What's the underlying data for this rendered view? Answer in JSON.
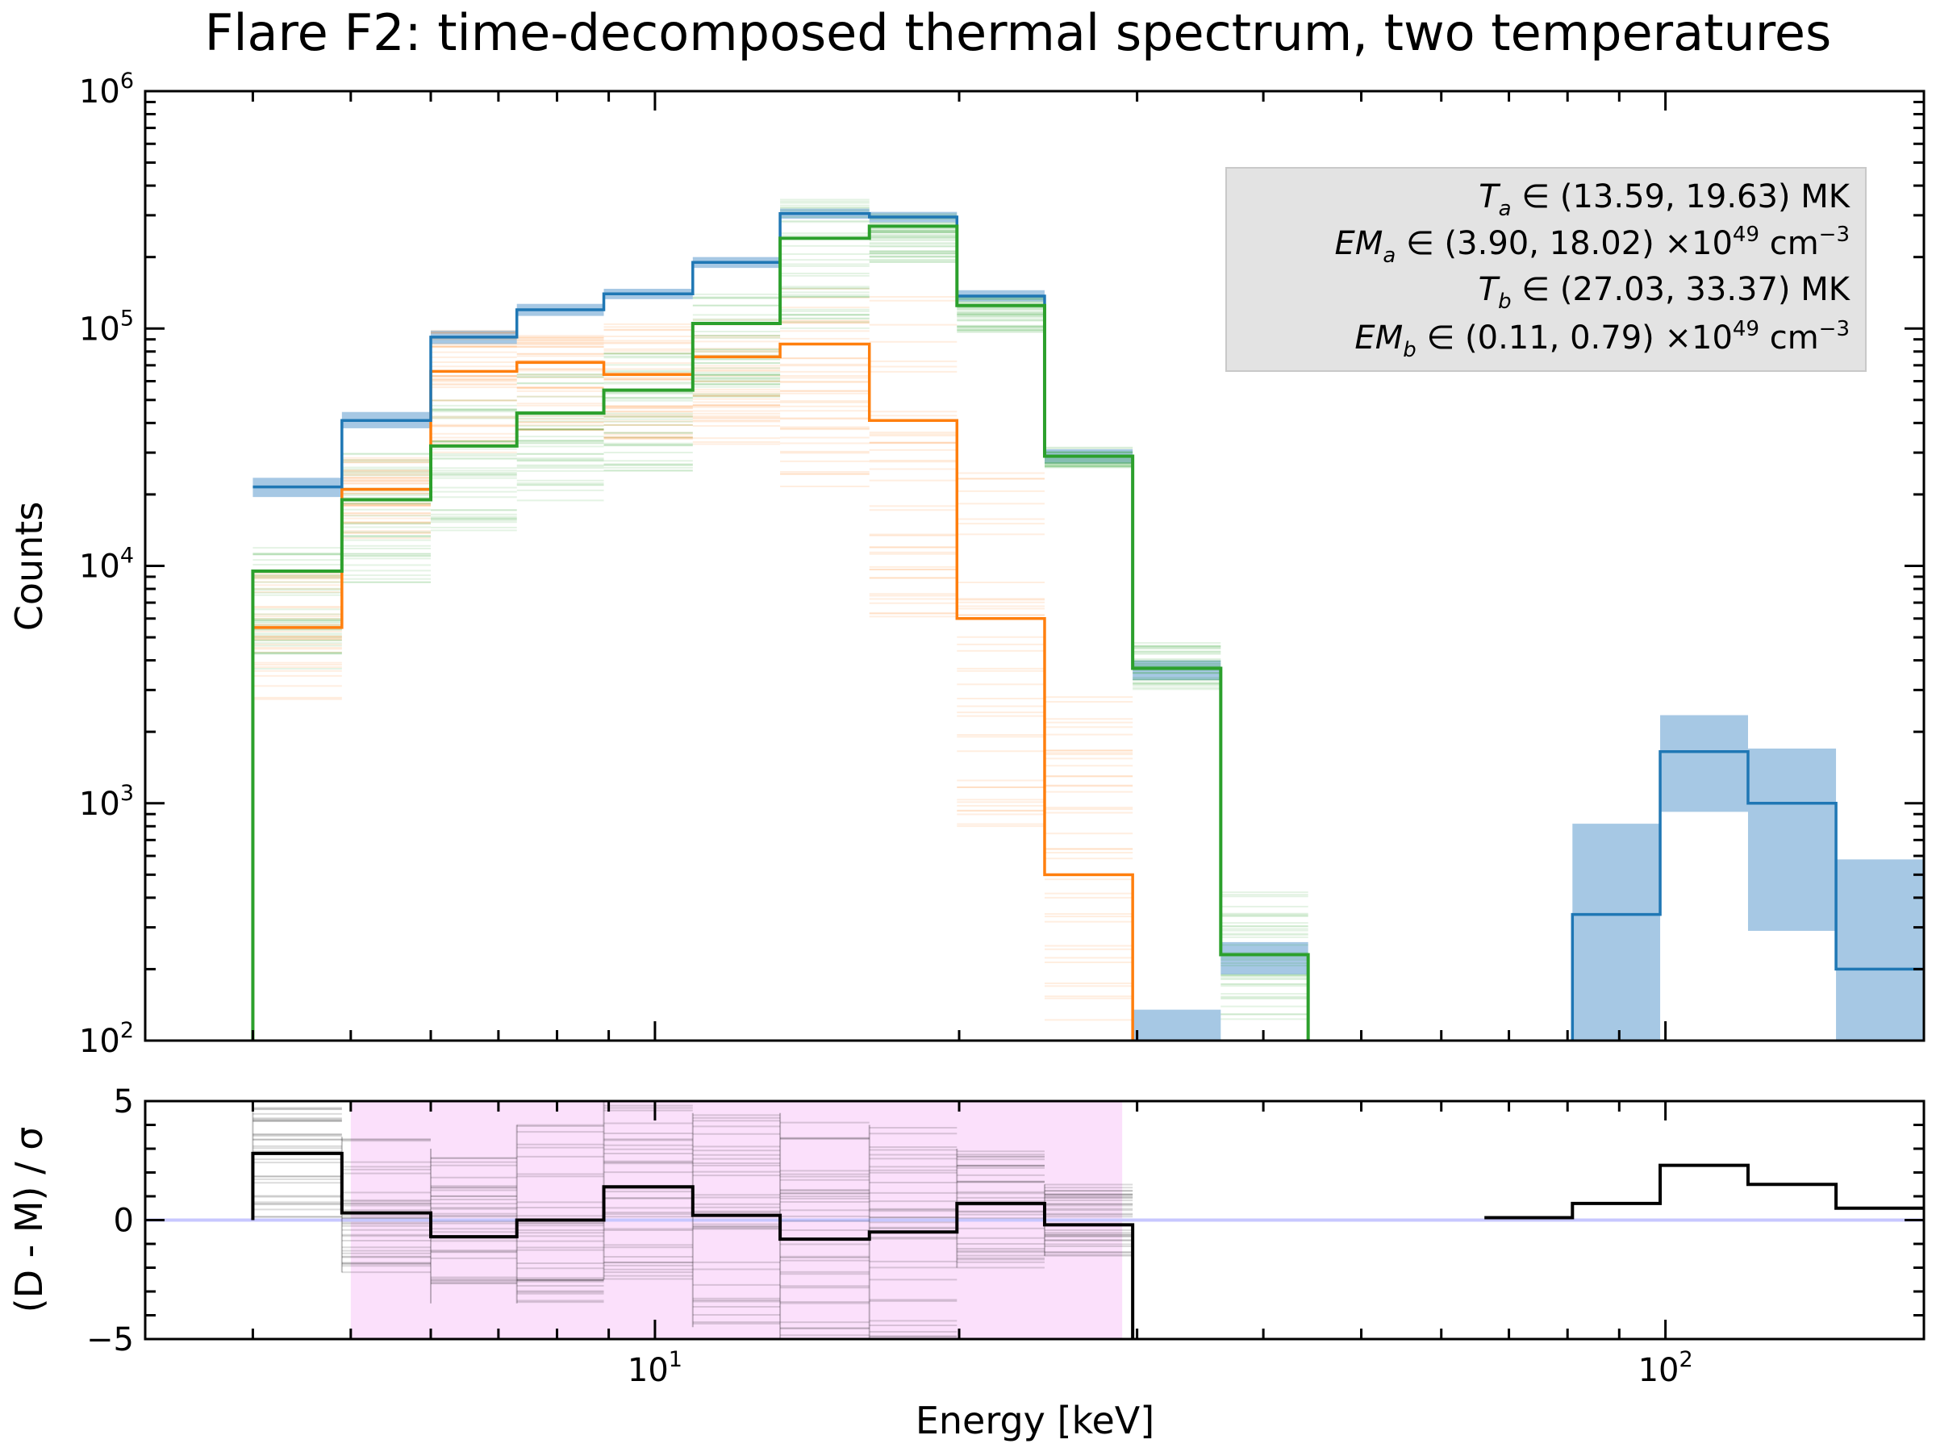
{
  "chart_data": {
    "title": "Flare F2: time-decomposed thermal spectrum, two temperatures",
    "xlabel": "Energy [keV]",
    "type": "line",
    "colors": {
      "total": "#1f77b4",
      "total_band": "#a6c8e4",
      "component_a": "#2ca02c",
      "component_b": "#ff7f0e",
      "residual": "#000000",
      "fit_window": "#fbe0fb",
      "zero_line": "#c7c7ff"
    },
    "bin_edges_keV": [
      4.0,
      4.9,
      6.0,
      7.3,
      8.9,
      10.9,
      13.3,
      16.3,
      19.9,
      24.3,
      29.7,
      36.3,
      44.3,
      54.1,
      66.2,
      80.9,
      98.8,
      120.7,
      147.5,
      180.2
    ],
    "spectrum": {
      "ylabel": "Counts",
      "yscale": "log",
      "ylim": [
        100,
        1000000
      ],
      "y_ticks": [
        {
          "base": "10",
          "exp": "2",
          "value": 100
        },
        {
          "base": "10",
          "exp": "3",
          "value": 1000
        },
        {
          "base": "10",
          "exp": "4",
          "value": 10000
        },
        {
          "base": "10",
          "exp": "5",
          "value": 100000
        },
        {
          "base": "10",
          "exp": "6",
          "value": 1000000
        }
      ],
      "series": [
        {
          "name": "total",
          "values": [
            21500,
            41000,
            92000,
            120000,
            140000,
            190000,
            305000,
            295000,
            137000,
            29000,
            3700,
            230,
            null,
            null,
            null,
            340,
            1650,
            1000,
            200
          ],
          "band_low": [
            19500,
            38000,
            86000,
            113000,
            133000,
            180000,
            290000,
            280000,
            130000,
            27000,
            3300,
            190,
            null,
            null,
            null,
            100,
            920,
            290,
            100
          ],
          "band_high": [
            23500,
            44500,
            98000,
            127000,
            147000,
            200000,
            320000,
            310000,
            145000,
            31000,
            4000,
            260,
            null,
            null,
            null,
            820,
            2350,
            1700,
            580
          ]
        },
        {
          "name": "component a",
          "values": [
            9500,
            19000,
            32000,
            44000,
            55000,
            105000,
            240000,
            270000,
            125000,
            29000,
            3700,
            230,
            null,
            null,
            null,
            null,
            null,
            null,
            null
          ],
          "band_low": [
            3500,
            8500,
            14000,
            18500,
            24500,
            50000,
            100000,
            190000,
            95000,
            26000,
            3000,
            110,
            null,
            null,
            null,
            null,
            null,
            null,
            null
          ],
          "band_high": [
            12500,
            30000,
            50000,
            68000,
            80000,
            150000,
            350000,
            320000,
            140000,
            32000,
            4800,
            470,
            null,
            null,
            null,
            null,
            null,
            null,
            null
          ]
        },
        {
          "name": "component b",
          "values": [
            5500,
            21000,
            66000,
            72000,
            64000,
            76000,
            86000,
            41000,
            6000,
            500,
            null,
            null,
            null,
            null,
            null,
            null,
            null,
            null,
            null
          ],
          "band_low": [
            2700,
            12500,
            30000,
            37000,
            33000,
            32000,
            20000,
            6000,
            800,
            100,
            null,
            null,
            null,
            null,
            null,
            null,
            null,
            null,
            null
          ],
          "band_high": [
            9500,
            29000,
            100000,
            105000,
            105000,
            110000,
            150000,
            140000,
            25000,
            3000,
            null,
            null,
            null,
            null,
            null,
            null,
            null,
            null,
            null
          ]
        }
      ]
    },
    "residuals": {
      "ylabel": "(D - M) / σ",
      "ylim": [
        -5,
        5
      ],
      "y_ticks": [
        {
          "label": "5",
          "value": 5
        },
        {
          "label": "0",
          "value": 0
        },
        {
          "label": "−5",
          "value": -5
        }
      ],
      "fit_range_keV": [
        5.0,
        29.0
      ],
      "values": [
        2.8,
        0.3,
        -0.7,
        0.0,
        1.4,
        0.2,
        -0.8,
        -0.5,
        0.7,
        -0.2,
        null,
        null,
        null,
        null,
        0.1,
        0.7,
        2.3,
        1.5,
        0.5
      ],
      "band_low": [
        0.0,
        -2.2,
        -3.5,
        -3.5,
        -2.5,
        -4.5,
        -5.0,
        -5.0,
        -2.0,
        -1.5,
        null,
        null,
        null,
        null,
        null,
        null,
        null,
        null,
        null
      ],
      "band_high": [
        5.0,
        3.5,
        3.0,
        4.0,
        5.0,
        4.5,
        4.5,
        4.0,
        3.0,
        1.5,
        null,
        null,
        null,
        null,
        null,
        null,
        null,
        null,
        null
      ]
    },
    "x_ticks": [
      {
        "base": "10",
        "exp": "1",
        "value": 10
      },
      {
        "base": "10",
        "exp": "2",
        "value": 100
      }
    ],
    "legend": {
      "position": "top-right",
      "entries": [
        {
          "symbol": "T",
          "sub": "a",
          "text": " ∈ (13.59, 19.63) MK"
        },
        {
          "symbol": "EM",
          "sub": "a",
          "text": " ∈ (3.90, 18.02) ×10",
          "sup": "49",
          "unit": " cm",
          "unit_sup": "−3"
        },
        {
          "symbol": "T",
          "sub": "b",
          "text": " ∈ (27.03, 33.37) MK"
        },
        {
          "symbol": "EM",
          "sub": "b",
          "text": " ∈ (0.11, 0.79) ×10",
          "sup": "49",
          "unit": " cm",
          "unit_sup": "−3"
        }
      ]
    }
  }
}
